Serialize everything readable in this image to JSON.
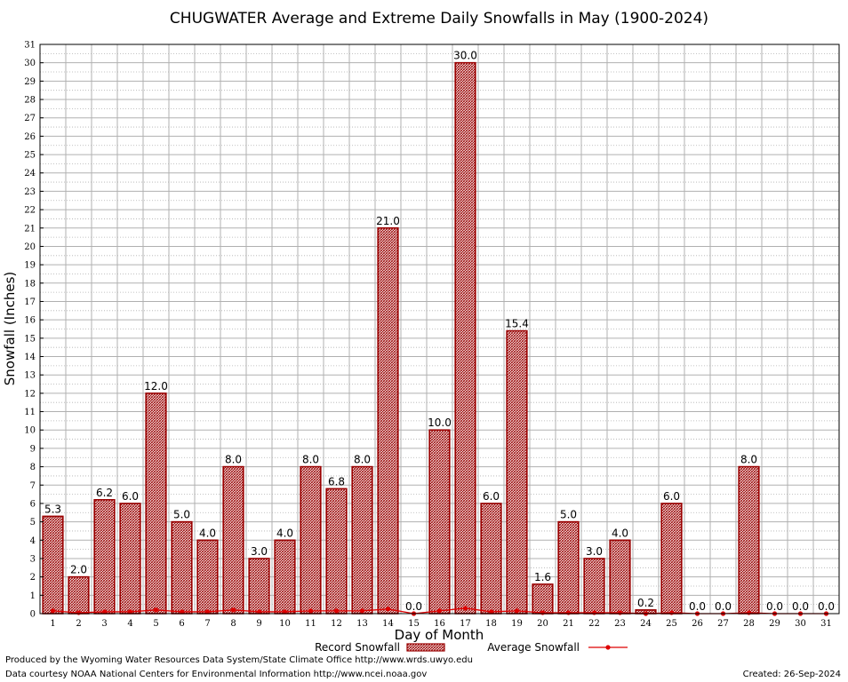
{
  "chart_data": {
    "type": "bar",
    "title": "CHUGWATER Average and Extreme Daily Snowfalls in May (1900-2024)",
    "xlabel": "Day of Month",
    "ylabel": "Snowfall (Inches)",
    "ylim": [
      0,
      31
    ],
    "grid": true,
    "categories": [
      "1",
      "2",
      "3",
      "4",
      "5",
      "6",
      "7",
      "8",
      "9",
      "10",
      "11",
      "12",
      "13",
      "14",
      "15",
      "16",
      "17",
      "18",
      "19",
      "20",
      "21",
      "22",
      "23",
      "24",
      "25",
      "26",
      "27",
      "28",
      "29",
      "30",
      "31"
    ],
    "series": [
      {
        "name": "Record Snowfall",
        "values": [
          5.3,
          2.0,
          6.2,
          6.0,
          12.0,
          5.0,
          4.0,
          8.0,
          3.0,
          4.0,
          8.0,
          6.8,
          8.0,
          21.0,
          0.0,
          10.0,
          30.0,
          6.0,
          15.4,
          1.6,
          5.0,
          3.0,
          4.0,
          0.2,
          6.0,
          0.0,
          0.0,
          8.0,
          0.0,
          0.0,
          0.0
        ],
        "labels": [
          "5.3",
          "2.0",
          "6.2",
          "6.0",
          "12.0",
          "5.0",
          "4.0",
          "8.0",
          "3.0",
          "4.0",
          "8.0",
          "6.8",
          "8.0",
          "21.0",
          "0.0",
          "10.0",
          "30.0",
          "6.0",
          "15.4",
          "1.6",
          "5.0",
          "3.0",
          "4.0",
          "0.2",
          "6.0",
          "0.0",
          "0.0",
          "8.0",
          "0.0",
          "0.0",
          "0.0"
        ]
      },
      {
        "name": "Average Snowfall",
        "values": [
          0.15,
          0.05,
          0.1,
          0.1,
          0.2,
          0.1,
          0.1,
          0.2,
          0.1,
          0.1,
          0.15,
          0.15,
          0.15,
          0.25,
          0.0,
          0.15,
          0.3,
          0.1,
          0.15,
          0.05,
          0.05,
          0.05,
          0.05,
          0.0,
          0.05,
          0.0,
          0.0,
          0.05,
          0.0,
          0.0,
          0.0
        ]
      }
    ],
    "yticks": [
      "0",
      "1",
      "2",
      "3",
      "4",
      "5",
      "6",
      "7",
      "8",
      "9",
      "10",
      "11",
      "12",
      "13",
      "14",
      "15",
      "16",
      "17",
      "18",
      "19",
      "20",
      "21",
      "22",
      "23",
      "24",
      "25",
      "26",
      "27",
      "28",
      "29",
      "30",
      "31"
    ],
    "legend_position": "bottom-center",
    "colors": {
      "bar": "#990000",
      "line": "#dd0000",
      "grid": "#b0b0b0"
    }
  },
  "footer": {
    "produced_by": "Produced by the Wyoming Water Resources Data System/State Climate Office http://www.wrds.uwyo.edu",
    "courtesy": "Data courtesy NOAA National Centers for Environmental Information http://www.ncei.noaa.gov",
    "created": "Created:  26-Sep-2024"
  }
}
